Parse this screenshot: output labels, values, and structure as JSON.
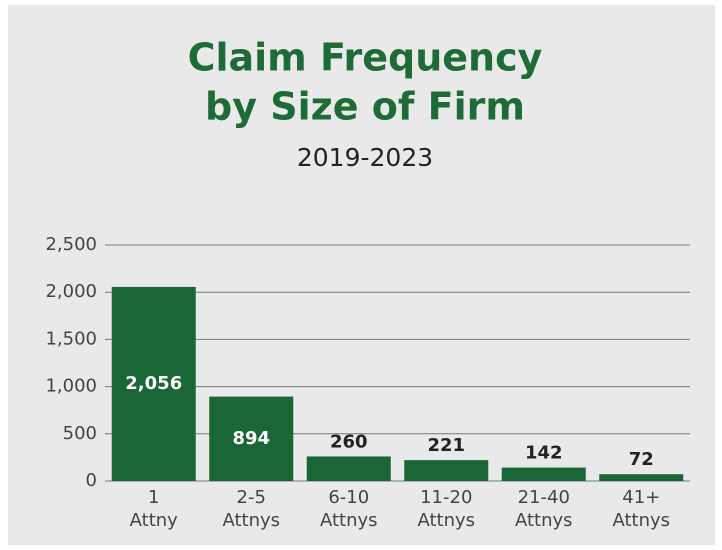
{
  "chart_data": {
    "type": "bar",
    "title": [
      "Claim Frequency",
      "by Size of Firm"
    ],
    "subtitle": "2019-2023",
    "categories": [
      [
        "1",
        "Attny"
      ],
      [
        "2-5",
        "Attnys"
      ],
      [
        "6-10",
        "Attnys"
      ],
      [
        "11-20",
        "Attnys"
      ],
      [
        "21-40",
        "Attnys"
      ],
      [
        "41+",
        "Attnys"
      ]
    ],
    "values": [
      2056,
      894,
      260,
      221,
      142,
      72
    ],
    "value_labels": [
      "2,056",
      "894",
      "260",
      "221",
      "142",
      "72"
    ],
    "color": "#1b6636",
    "ylim": [
      0,
      2500
    ],
    "yticks": [
      0,
      500,
      {
        "value": 1000,
        "label": "1,000"
      },
      {
        "value": 1500,
        "label": "1,500"
      },
      {
        "value": 2000,
        "label": "2,000"
      },
      {
        "value": 2500,
        "label": "2,500"
      }
    ],
    "grid": true
  }
}
